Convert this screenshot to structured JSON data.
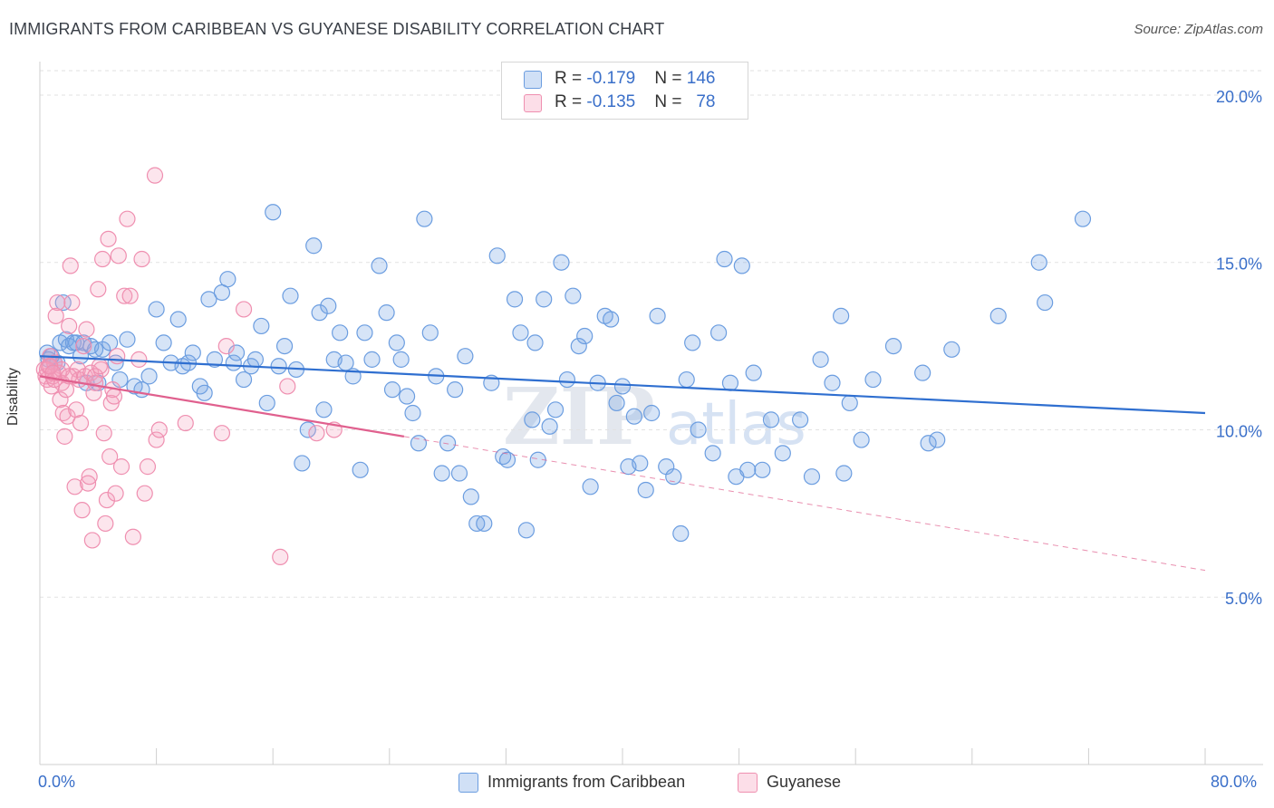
{
  "title": "IMMIGRANTS FROM CARIBBEAN VS GUYANESE DISABILITY CORRELATION CHART",
  "source": "Source: ZipAtlas.com",
  "colors": {
    "blue": "#6b9de0",
    "blue_fill": "rgba(120,165,230,0.30)",
    "blue_line": "#2f6fd0",
    "pink": "#ef8fb0",
    "pink_fill": "rgba(245,160,190,0.28)",
    "pink_line": "#e0608e",
    "tick_label": "#3a6fc9"
  },
  "legend": {
    "rows": [
      {
        "r_label": "R = ",
        "r_value": "-0.179",
        "n_label": "N = ",
        "n_value": "146"
      },
      {
        "r_label": "R = ",
        "r_value": "-0.135",
        "n_label": "N = ",
        "n_value": "78"
      }
    ]
  },
  "bottom_legend": [
    "Immigrants from Caribbean",
    "Guyanese"
  ],
  "chart_data": {
    "type": "scatter",
    "ylabel": "Disability",
    "xlim": [
      0,
      80
    ],
    "ylim": [
      0,
      21
    ],
    "x_tick_labels": [
      "0.0%",
      "80.0%"
    ],
    "y_ticks": [
      5,
      10,
      15,
      20
    ],
    "y_tick_labels": [
      "5.0%",
      "10.0%",
      "15.0%",
      "20.0%"
    ],
    "grid": "horizontal dashed",
    "legend_position": "top-center",
    "series": [
      {
        "name": "Immigrants from Caribbean",
        "color": "#6b9de0",
        "trend": {
          "x": [
            0,
            80
          ],
          "y": [
            12.2,
            10.5
          ],
          "dashed_extension": false
        },
        "points": [
          [
            0.5,
            12.3
          ],
          [
            0.6,
            12.1
          ],
          [
            0.8,
            12.2
          ],
          [
            1.0,
            12.0
          ],
          [
            1.2,
            12.0
          ],
          [
            1.4,
            12.6
          ],
          [
            1.6,
            13.8
          ],
          [
            1.8,
            12.7
          ],
          [
            2.0,
            12.5
          ],
          [
            2.3,
            12.6
          ],
          [
            2.5,
            12.6
          ],
          [
            2.8,
            12.2
          ],
          [
            3.0,
            12.6
          ],
          [
            3.2,
            11.4
          ],
          [
            3.5,
            12.5
          ],
          [
            3.8,
            12.4
          ],
          [
            4.0,
            11.4
          ],
          [
            4.3,
            12.4
          ],
          [
            4.8,
            12.6
          ],
          [
            5.2,
            12.0
          ],
          [
            5.5,
            11.5
          ],
          [
            6.0,
            12.7
          ],
          [
            6.5,
            11.3
          ],
          [
            7.0,
            11.2
          ],
          [
            7.5,
            11.6
          ],
          [
            8.0,
            13.6
          ],
          [
            8.5,
            12.6
          ],
          [
            9.0,
            12.0
          ],
          [
            9.5,
            13.3
          ],
          [
            9.8,
            11.9
          ],
          [
            10.2,
            12.0
          ],
          [
            10.5,
            12.3
          ],
          [
            11.0,
            11.3
          ],
          [
            11.3,
            11.1
          ],
          [
            11.6,
            13.9
          ],
          [
            12.0,
            12.1
          ],
          [
            12.5,
            14.1
          ],
          [
            12.9,
            14.5
          ],
          [
            13.3,
            12.0
          ],
          [
            13.5,
            12.3
          ],
          [
            14.0,
            11.5
          ],
          [
            14.5,
            11.9
          ],
          [
            14.8,
            12.1
          ],
          [
            15.2,
            13.1
          ],
          [
            15.6,
            10.8
          ],
          [
            16.0,
            16.5
          ],
          [
            16.4,
            11.9
          ],
          [
            16.8,
            12.5
          ],
          [
            17.2,
            14.0
          ],
          [
            17.6,
            11.8
          ],
          [
            18.0,
            9.0
          ],
          [
            18.4,
            10.0
          ],
          [
            18.8,
            15.5
          ],
          [
            19.2,
            13.5
          ],
          [
            19.5,
            10.6
          ],
          [
            19.8,
            13.7
          ],
          [
            20.2,
            12.1
          ],
          [
            20.6,
            12.9
          ],
          [
            21.0,
            12.0
          ],
          [
            21.5,
            11.6
          ],
          [
            22.0,
            8.8
          ],
          [
            22.3,
            12.9
          ],
          [
            22.8,
            12.1
          ],
          [
            23.3,
            14.9
          ],
          [
            23.8,
            13.5
          ],
          [
            24.2,
            11.2
          ],
          [
            24.5,
            12.6
          ],
          [
            24.8,
            12.1
          ],
          [
            25.2,
            11.0
          ],
          [
            25.6,
            10.5
          ],
          [
            26.0,
            9.6
          ],
          [
            26.4,
            16.3
          ],
          [
            26.8,
            12.9
          ],
          [
            27.2,
            11.6
          ],
          [
            27.6,
            8.7
          ],
          [
            28.0,
            9.6
          ],
          [
            28.5,
            11.2
          ],
          [
            28.8,
            8.7
          ],
          [
            29.2,
            12.2
          ],
          [
            29.6,
            8.0
          ],
          [
            30.0,
            7.2
          ],
          [
            30.5,
            7.2
          ],
          [
            31.0,
            11.4
          ],
          [
            31.4,
            15.2
          ],
          [
            31.8,
            9.2
          ],
          [
            32.1,
            9.1
          ],
          [
            32.6,
            13.9
          ],
          [
            33.0,
            12.9
          ],
          [
            33.4,
            7.0
          ],
          [
            33.8,
            10.3
          ],
          [
            34.0,
            12.6
          ],
          [
            34.2,
            9.1
          ],
          [
            34.6,
            13.9
          ],
          [
            35.0,
            10.1
          ],
          [
            35.4,
            10.6
          ],
          [
            35.8,
            15.0
          ],
          [
            36.2,
            11.5
          ],
          [
            36.6,
            14.0
          ],
          [
            37.0,
            12.5
          ],
          [
            37.4,
            12.8
          ],
          [
            37.8,
            8.3
          ],
          [
            38.3,
            11.4
          ],
          [
            38.8,
            13.4
          ],
          [
            39.2,
            13.3
          ],
          [
            39.6,
            10.8
          ],
          [
            40.0,
            11.3
          ],
          [
            40.4,
            8.9
          ],
          [
            40.8,
            10.4
          ],
          [
            41.2,
            9.0
          ],
          [
            41.6,
            8.2
          ],
          [
            42.0,
            10.5
          ],
          [
            42.4,
            13.4
          ],
          [
            43.0,
            8.9
          ],
          [
            43.5,
            8.6
          ],
          [
            44.0,
            6.9
          ],
          [
            44.4,
            11.5
          ],
          [
            44.8,
            12.6
          ],
          [
            45.2,
            10.0
          ],
          [
            46.2,
            9.3
          ],
          [
            46.6,
            12.9
          ],
          [
            47.0,
            15.1
          ],
          [
            47.4,
            11.4
          ],
          [
            47.8,
            8.6
          ],
          [
            48.2,
            14.9
          ],
          [
            48.6,
            8.8
          ],
          [
            49.0,
            11.7
          ],
          [
            49.6,
            8.8
          ],
          [
            50.2,
            10.3
          ],
          [
            51.0,
            9.3
          ],
          [
            52.2,
            10.3
          ],
          [
            53.0,
            8.6
          ],
          [
            53.6,
            12.1
          ],
          [
            54.4,
            11.4
          ],
          [
            55.2,
            8.7
          ],
          [
            55.6,
            10.8
          ],
          [
            55.0,
            13.4
          ],
          [
            56.4,
            9.7
          ],
          [
            57.2,
            11.5
          ],
          [
            58.6,
            12.5
          ],
          [
            60.6,
            11.7
          ],
          [
            61.0,
            9.6
          ],
          [
            61.6,
            9.7
          ],
          [
            62.6,
            12.4
          ],
          [
            65.8,
            13.4
          ],
          [
            68.6,
            15.0
          ],
          [
            69.0,
            13.8
          ],
          [
            71.6,
            16.3
          ]
        ]
      },
      {
        "name": "Guyanese",
        "color": "#ef8fb0",
        "trend": {
          "x": [
            0,
            25
          ],
          "y": [
            11.6,
            9.8
          ],
          "dashed_extension": {
            "x": [
              25,
              80
            ],
            "y": [
              9.8,
              5.8
            ]
          }
        },
        "points": [
          [
            0.3,
            11.8
          ],
          [
            0.4,
            11.6
          ],
          [
            0.5,
            11.5
          ],
          [
            0.6,
            11.9
          ],
          [
            0.7,
            12.2
          ],
          [
            0.8,
            11.3
          ],
          [
            0.9,
            11.6
          ],
          [
            1.0,
            12.0
          ],
          [
            1.1,
            13.4
          ],
          [
            1.2,
            13.8
          ],
          [
            1.3,
            11.7
          ],
          [
            1.4,
            10.9
          ],
          [
            1.5,
            11.4
          ],
          [
            1.6,
            10.5
          ],
          [
            1.7,
            9.8
          ],
          [
            1.8,
            11.2
          ],
          [
            1.9,
            10.4
          ],
          [
            2.0,
            13.1
          ],
          [
            2.1,
            14.9
          ],
          [
            2.2,
            13.8
          ],
          [
            2.3,
            11.6
          ],
          [
            2.4,
            8.3
          ],
          [
            2.5,
            10.6
          ],
          [
            2.6,
            11.8
          ],
          [
            2.7,
            11.5
          ],
          [
            2.8,
            10.2
          ],
          [
            2.9,
            7.6
          ],
          [
            3.0,
            12.5
          ],
          [
            3.1,
            11.6
          ],
          [
            3.2,
            13.0
          ],
          [
            3.3,
            8.4
          ],
          [
            3.4,
            8.6
          ],
          [
            3.5,
            11.7
          ],
          [
            3.6,
            6.7
          ],
          [
            3.7,
            11.1
          ],
          [
            3.8,
            11.4
          ],
          [
            4.0,
            14.2
          ],
          [
            4.2,
            11.8
          ],
          [
            4.3,
            15.1
          ],
          [
            4.4,
            9.9
          ],
          [
            4.5,
            7.2
          ],
          [
            4.6,
            7.9
          ],
          [
            4.7,
            15.7
          ],
          [
            4.8,
            9.2
          ],
          [
            4.9,
            10.8
          ],
          [
            5.0,
            11.2
          ],
          [
            5.1,
            11.0
          ],
          [
            5.2,
            8.1
          ],
          [
            5.3,
            12.2
          ],
          [
            5.4,
            15.2
          ],
          [
            5.6,
            8.9
          ],
          [
            5.8,
            14.0
          ],
          [
            6.0,
            16.3
          ],
          [
            6.2,
            14.0
          ],
          [
            6.4,
            6.8
          ],
          [
            6.8,
            12.1
          ],
          [
            7.0,
            15.1
          ],
          [
            7.2,
            8.1
          ],
          [
            7.4,
            8.9
          ],
          [
            7.9,
            17.6
          ],
          [
            8.0,
            9.7
          ],
          [
            8.2,
            10.0
          ],
          [
            10.0,
            10.2
          ],
          [
            12.5,
            9.9
          ],
          [
            12.8,
            12.5
          ],
          [
            14.0,
            13.6
          ],
          [
            16.5,
            6.2
          ],
          [
            17.0,
            11.3
          ],
          [
            19.0,
            9.9
          ],
          [
            20.2,
            10.0
          ],
          [
            0.5,
            11.8
          ],
          [
            1.0,
            11.5
          ],
          [
            1.5,
            11.8
          ],
          [
            2.0,
            11.6
          ],
          [
            0.7,
            11.9
          ],
          [
            3.8,
            11.6
          ],
          [
            4.1,
            11.9
          ],
          [
            0.9,
            11.7
          ]
        ]
      }
    ]
  }
}
